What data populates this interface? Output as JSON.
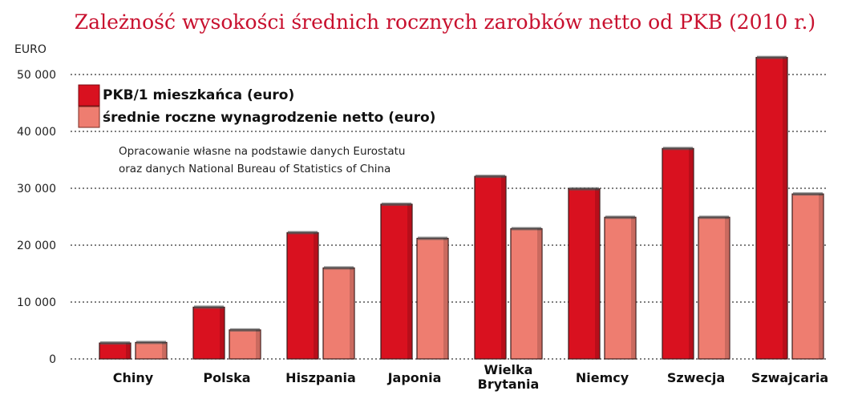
{
  "chart_data": {
    "type": "bar",
    "title": "Zależność wysokości średnich rocznych zarobków netto od PKB (2010 r.)",
    "ylabel": "EURO",
    "xlabel": "",
    "ylim": [
      0,
      50000
    ],
    "yticks": [
      0,
      10000,
      20000,
      30000,
      40000,
      50000
    ],
    "ytick_labels": [
      "0",
      "10 000",
      "20 000",
      "30 000",
      "40 000",
      "50 000"
    ],
    "grid": true,
    "legend_position": "top-left",
    "categories": [
      [
        "Chiny"
      ],
      [
        "Polska"
      ],
      [
        "Hiszpania"
      ],
      [
        "Japonia"
      ],
      [
        "Wielka",
        "Brytania"
      ],
      [
        "Niemcy"
      ],
      [
        "Szwecja"
      ],
      [
        "Szwajcaria"
      ]
    ],
    "series": [
      {
        "name": "PKB/1 mieszkańca (euro)",
        "color": "#d9111f",
        "values": [
          2800,
          9100,
          22200,
          27200,
          32100,
          29900,
          37000,
          53000
        ]
      },
      {
        "name": "średnie roczne wynagrodzenie netto (euro)",
        "color": "#ee7d70",
        "values": [
          2900,
          5100,
          16000,
          21200,
          22900,
          24900,
          24900,
          29000
        ]
      }
    ],
    "annotation": [
      "Opracowanie własne na podstawie danych Eurostatu",
      "oraz danych National Bureau of Statistics of China"
    ]
  }
}
